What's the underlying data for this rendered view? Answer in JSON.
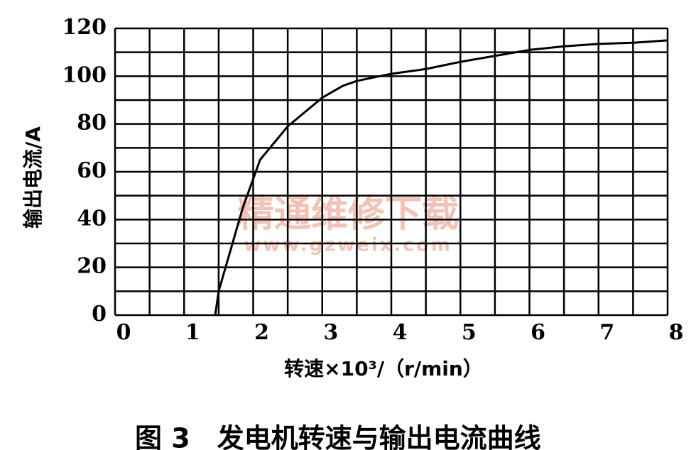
{
  "chart_data": {
    "type": "line",
    "title": "图 3　发电机转速与输出电流曲线",
    "xlabel": "转速×10³/（r/min）",
    "ylabel": "输出电流/A",
    "watermark": [
      "精通维修下载",
      "www.gzweix.com"
    ],
    "x": [
      1.45,
      1.5,
      1.6,
      1.75,
      1.85,
      2.1,
      2.5,
      3,
      3.3,
      3.5,
      4,
      4.5,
      5,
      5.5,
      6,
      6.5,
      7,
      7.5,
      8
    ],
    "series": [
      {
        "color": "#000000",
        "values": [
          0,
          10,
          20,
          35,
          45,
          65,
          79,
          91,
          96,
          98,
          101,
          103,
          106,
          108.5,
          111,
          112.5,
          113.5,
          114,
          115
        ]
      }
    ],
    "xlim": [
      0,
      8
    ],
    "xticks": [
      0,
      1,
      2,
      3,
      4,
      5,
      6,
      7,
      8
    ],
    "ylim": [
      0,
      120
    ],
    "yticks": [
      0,
      20,
      40,
      60,
      80,
      100,
      120
    ],
    "grid": true
  }
}
